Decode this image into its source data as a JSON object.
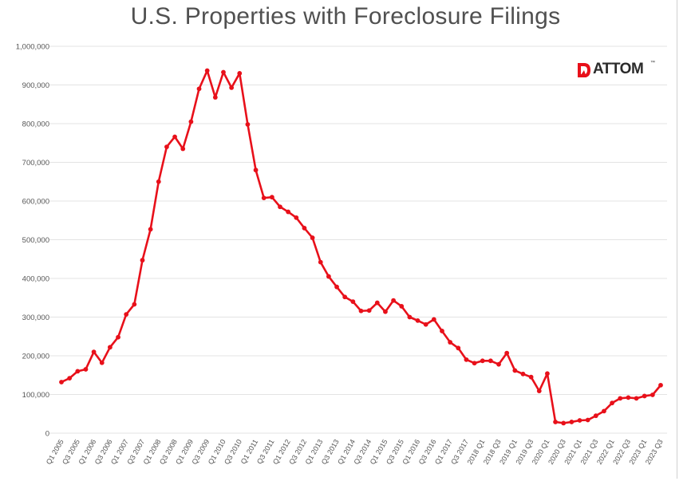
{
  "chart_data": {
    "type": "line",
    "title": "U.S. Properties with Foreclosure Filings",
    "xlabel": "",
    "ylabel": "",
    "ylim": [
      0,
      1000000
    ],
    "yticks": [
      "0",
      "100,000",
      "200,000",
      "300,000",
      "400,000",
      "500,000",
      "600,000",
      "700,000",
      "800,000",
      "900,000",
      "1,000,000"
    ],
    "x": [
      "Q1 2005",
      "Q2 2005",
      "Q3 2005",
      "Q4 2005",
      "Q1 2006",
      "Q2 2006",
      "Q3 2006",
      "Q4 2006",
      "Q1 2007",
      "Q2 2007",
      "Q3 2007",
      "Q4 2007",
      "Q1 2008",
      "Q2 2008",
      "Q3 2008",
      "Q4 2008",
      "Q1 2009",
      "Q2 2009",
      "Q3 2009",
      "Q4 2009",
      "Q1 2010",
      "Q2 2010",
      "Q3 2010",
      "Q4 2010",
      "Q1 2011",
      "Q2 2011",
      "Q3 2011",
      "Q4 2011",
      "Q1 2012",
      "Q2 2012",
      "Q3 2012",
      "Q4 2012",
      "Q1 2013",
      "Q2 2013",
      "Q3 2013",
      "Q4 2013",
      "Q1 2014",
      "Q2 2014",
      "Q3 2014",
      "Q4 2014",
      "Q1 2015",
      "Q2 2015",
      "Q3 2015",
      "Q4 2015",
      "Q1 2016",
      "Q2 2016",
      "Q3 2016",
      "Q4 2016",
      "Q1 2017",
      "Q2 2017",
      "Q3 2017",
      "Q4 2017",
      "2018 Q1",
      "2018 Q2",
      "2018 Q3",
      "2018 Q4",
      "2019 Q1",
      "2019 Q2",
      "2019 Q3",
      "2019 Q4",
      "2020 Q1",
      "2020 Q2",
      "2020 Q3",
      "2020 Q4",
      "2021 Q1",
      "2021 Q2",
      "2021 Q3",
      "2021 Q4",
      "2022 Q1",
      "2022 Q2",
      "2022 Q3",
      "2022 Q4",
      "2023 Q1",
      "2023 Q2",
      "2023 Q3"
    ],
    "xtick_labels": [
      "Q1 2005",
      "Q3 2005",
      "Q1 2006",
      "Q3 2006",
      "Q1 2007",
      "Q3 2007",
      "Q1 2008",
      "Q3 2008",
      "Q1 2009",
      "Q3 2009",
      "Q1 2010",
      "Q3 2010",
      "Q1 2011",
      "Q3 2011",
      "Q1 2012",
      "Q3 2012",
      "Q1 2013",
      "Q3 2013",
      "Q1 2014",
      "Q3 2014",
      "Q1 2015",
      "Q3 2015",
      "Q1 2016",
      "Q3 2016",
      "Q1 2017",
      "Q3 2017",
      "2018 Q1",
      "2018 Q3",
      "2019 Q1",
      "2019 Q3",
      "2020 Q1",
      "2020 Q3",
      "2021 Q1",
      "2021 Q3",
      "2022 Q1",
      "2022 Q3",
      "2023 Q1",
      "2023 Q3"
    ],
    "series": [
      {
        "values": [
          132000,
          142000,
          160000,
          165000,
          210000,
          182000,
          222000,
          248000,
          307000,
          333000,
          447000,
          527000,
          650000,
          740000,
          766000,
          735000,
          805000,
          890000,
          937000,
          868000,
          933000,
          893000,
          930000,
          798000,
          680000,
          608000,
          610000,
          585000,
          572000,
          557000,
          530000,
          505000,
          442000,
          405000,
          378000,
          352000,
          340000,
          316000,
          317000,
          337000,
          314000,
          343000,
          328000,
          300000,
          291000,
          281000,
          294000,
          264000,
          235000,
          220000,
          190000,
          181000,
          187000,
          187000,
          178000,
          207000,
          162000,
          153000,
          145000,
          109000,
          154000,
          29000,
          26000,
          29000,
          33000,
          34000,
          45000,
          57000,
          78000,
          90000,
          92000,
          90000,
          96000,
          99000,
          124000
        ]
      }
    ],
    "grid": true,
    "colors": {
      "line": "#e8101a",
      "grid": "#e3e3e3",
      "tick_text": "#555555",
      "title": "#505050"
    }
  },
  "logo": {
    "text": "ATTOM",
    "tm": "™",
    "color": "#e8101a"
  }
}
